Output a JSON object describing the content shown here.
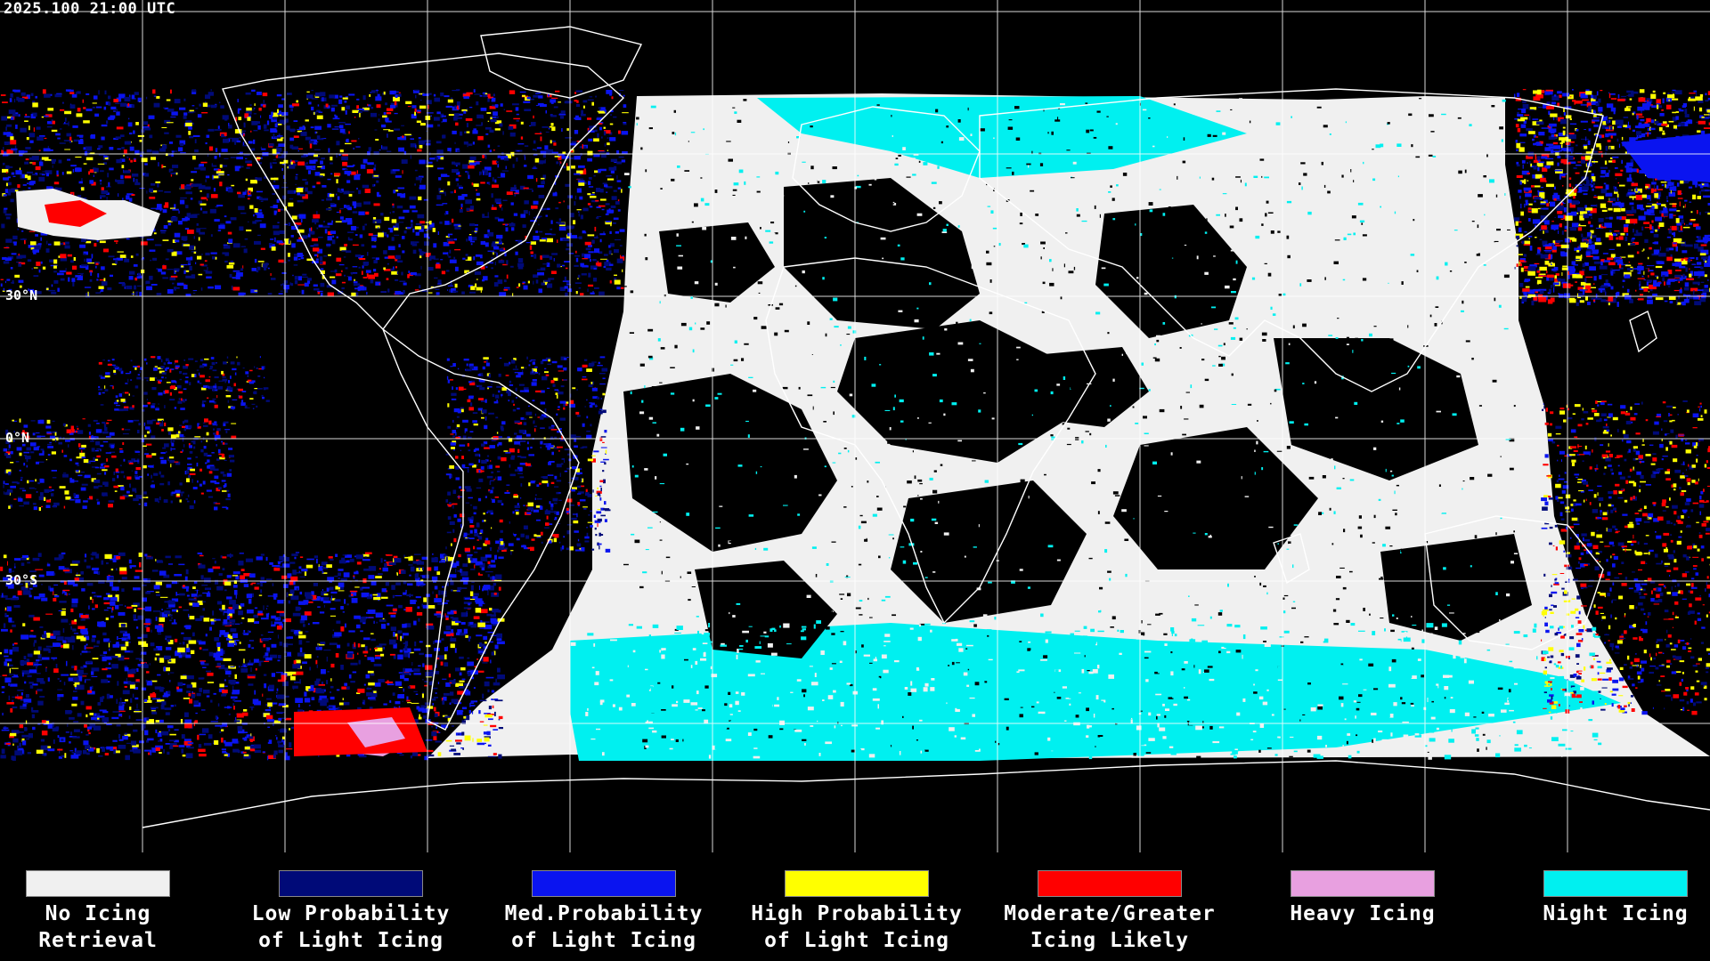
{
  "timestamp": "2025.100 21:00 UTC",
  "lat_labels": [
    {
      "text": "30°N",
      "lat": 30
    },
    {
      "text": "0°N",
      "lat": 0
    },
    {
      "text": "30°S",
      "lat": -30
    }
  ],
  "legend": [
    {
      "label": "No Icing\nRetrieval",
      "color": "#f0f0f0"
    },
    {
      "label": "Low Probability\nof Light Icing",
      "color": "#000a78"
    },
    {
      "label": "Med.Probability\nof Light Icing",
      "color": "#0a14f0"
    },
    {
      "label": "High Probability\nof Light Icing",
      "color": "#ffff00"
    },
    {
      "label": "Moderate/Greater\nIcing Likely",
      "color": "#ff0000"
    },
    {
      "label": "Heavy Icing",
      "color": "#e8a0e0"
    },
    {
      "label": "Night Icing",
      "color": "#00f0f0"
    }
  ],
  "colors": {
    "background": "#000000",
    "grid": "#ffffff",
    "coastline": "#ffffff"
  }
}
